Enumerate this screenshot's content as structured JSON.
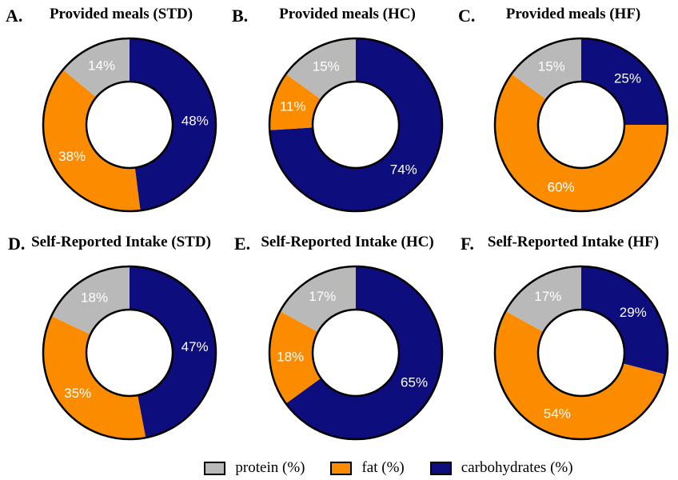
{
  "figure": {
    "background": "#ffffff",
    "slice_colors": {
      "carbohydrates": "#0d0d7d",
      "fat": "#fb8c00",
      "protein": "#b9b9b9"
    },
    "outline_color": "#000000",
    "label_text_color": "#ffffff"
  },
  "chart_data": [
    {
      "type": "pie",
      "donut": true,
      "panel_label": "A.",
      "title": "Provided meals (STD)",
      "categories": [
        "carbohydrates",
        "fat",
        "protein"
      ],
      "values": [
        48,
        38,
        14
      ],
      "labels": [
        "48%",
        "38%",
        "14%"
      ],
      "start_angle_deg": 0,
      "direction": "clockwise",
      "legend_position": "bottom-shared"
    },
    {
      "type": "pie",
      "donut": true,
      "panel_label": "B.",
      "title": "Provided meals (HC)",
      "categories": [
        "carbohydrates",
        "fat",
        "protein"
      ],
      "values": [
        74,
        11,
        15
      ],
      "labels": [
        "74%",
        "11%",
        "15%"
      ],
      "start_angle_deg": 0,
      "direction": "clockwise",
      "legend_position": "bottom-shared"
    },
    {
      "type": "pie",
      "donut": true,
      "panel_label": "C.",
      "title": "Provided meals (HF)",
      "categories": [
        "carbohydrates",
        "fat",
        "protein"
      ],
      "values": [
        25,
        60,
        15
      ],
      "labels": [
        "25%",
        "60%",
        "15%"
      ],
      "start_angle_deg": 0,
      "direction": "clockwise",
      "legend_position": "bottom-shared"
    },
    {
      "type": "pie",
      "donut": true,
      "panel_label": "D.",
      "title": "Self-Reported Intake (STD)",
      "categories": [
        "carbohydrates",
        "fat",
        "protein"
      ],
      "values": [
        47,
        35,
        18
      ],
      "labels": [
        "47%",
        "35%",
        "18%"
      ],
      "start_angle_deg": 0,
      "direction": "clockwise",
      "legend_position": "bottom-shared"
    },
    {
      "type": "pie",
      "donut": true,
      "panel_label": "E.",
      "title": "Self-Reported Intake (HC)",
      "categories": [
        "carbohydrates",
        "fat",
        "protein"
      ],
      "values": [
        65,
        18,
        17
      ],
      "labels": [
        "65%",
        "18%",
        "17%"
      ],
      "start_angle_deg": 0,
      "direction": "clockwise",
      "legend_position": "bottom-shared"
    },
    {
      "type": "pie",
      "donut": true,
      "panel_label": "F.",
      "title": "Self-Reported Intake (HF)",
      "categories": [
        "carbohydrates",
        "fat",
        "protein"
      ],
      "values": [
        29,
        54,
        17
      ],
      "labels": [
        "29%",
        "54%",
        "17%"
      ],
      "start_angle_deg": 0,
      "direction": "clockwise",
      "legend_position": "bottom-shared"
    }
  ],
  "legend": {
    "items": [
      {
        "label": "protein (%)",
        "color": "#b9b9b9",
        "key": "protein"
      },
      {
        "label": "fat (%)",
        "color": "#fb8c00",
        "key": "fat"
      },
      {
        "label": "carbohydrates (%)",
        "color": "#0d0d7d",
        "key": "carbohydrates"
      }
    ]
  }
}
